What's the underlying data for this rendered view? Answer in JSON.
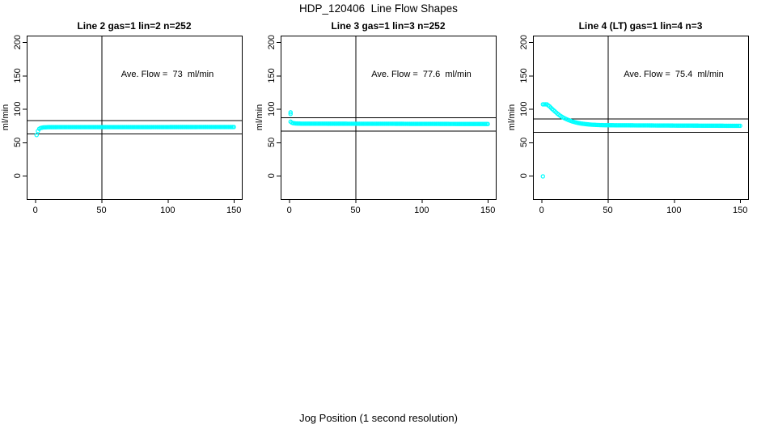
{
  "chart_data": {
    "type": "scatter",
    "title": "HDP_120406  Line Flow Shapes",
    "xlabel": "Jog Position (1 second resolution)",
    "ylabel": "ml/min",
    "x_ticks": [
      0,
      50,
      100,
      150
    ],
    "y_ticks": [
      0,
      50,
      100,
      150,
      200
    ],
    "xlim": [
      -6.5,
      156
    ],
    "ylim": [
      -35,
      210
    ],
    "grid": false,
    "point_color": "#00ffff",
    "line_color": "#000000",
    "marker": "open-circle",
    "panels": [
      {
        "title": "Line 2 gas=1 lin=2 n=252",
        "annotation": "Ave. Flow =  73  ml/min",
        "ave_flow": 73,
        "n": 252,
        "vline_x": 50,
        "hlines": [
          83,
          63
        ],
        "profile": [
          [
            1,
            61
          ],
          [
            2,
            67
          ],
          [
            3,
            70.3
          ],
          [
            4,
            71.5
          ],
          [
            6,
            72.4
          ],
          [
            10,
            72.8
          ],
          [
            150,
            73
          ]
        ],
        "outliers": []
      },
      {
        "title": "Line 3 gas=1 lin=3 n=252",
        "annotation": "Ave. Flow =  77.6  ml/min",
        "ave_flow": 77.6,
        "n": 252,
        "vline_x": 50,
        "hlines": [
          87.6,
          67.6
        ],
        "profile": [
          [
            1,
            81
          ],
          [
            2,
            79.5
          ],
          [
            3,
            78.8
          ],
          [
            5,
            78.3
          ],
          [
            10,
            78
          ],
          [
            60,
            77.9
          ],
          [
            150,
            77.5
          ]
        ],
        "outliers": [
          [
            1,
            95
          ],
          [
            1,
            92.5
          ]
        ]
      },
      {
        "title": "Line 4 (LT) gas=1 lin=4 n=3",
        "annotation": "Ave. Flow =  75.4  ml/min",
        "ave_flow": 75.4,
        "n": 3,
        "vline_x": 50,
        "hlines": [
          85.4,
          65.4
        ],
        "profile": [
          [
            1,
            107
          ],
          [
            4,
            107
          ],
          [
            6,
            104
          ],
          [
            8,
            100
          ],
          [
            10,
            96.5
          ],
          [
            12,
            93
          ],
          [
            14,
            90
          ],
          [
            16,
            87.5
          ],
          [
            18,
            85.5
          ],
          [
            20,
            83.7
          ],
          [
            22,
            82.2
          ],
          [
            24,
            80.9
          ],
          [
            26,
            79.8
          ],
          [
            28,
            78.9
          ],
          [
            30,
            78.2
          ],
          [
            34,
            77.2
          ],
          [
            38,
            76.5
          ],
          [
            44,
            75.9
          ],
          [
            50,
            75.7
          ],
          [
            70,
            75.5
          ],
          [
            100,
            75.2
          ],
          [
            150,
            74.8
          ]
        ],
        "outliers": [
          [
            1,
            -1
          ]
        ]
      }
    ]
  }
}
